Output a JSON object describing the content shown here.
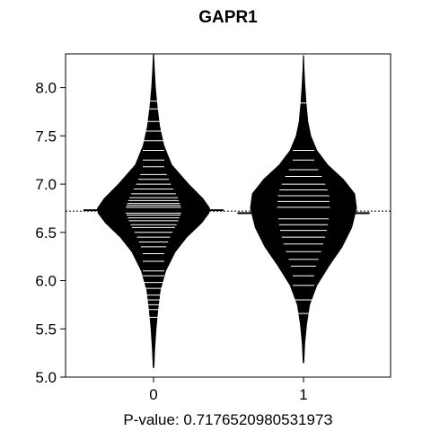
{
  "chart_data": {
    "type": "beanplot",
    "title": "GAPR1",
    "xlabel": "P-value: 0.717652098053197З",
    "ylabel": "",
    "ylim": [
      5.0,
      8.35
    ],
    "yticks": [
      "5.0",
      "5.5",
      "6.0",
      "6.5",
      "7.0",
      "7.5",
      "8.0"
    ],
    "categories": [
      "0",
      "1"
    ],
    "overall_line": 6.72,
    "grid": false,
    "groups": [
      {
        "label": "0",
        "mean": 6.73,
        "range": [
          5.1,
          8.35
        ],
        "density": [
          [
            5.1,
            0.005
          ],
          [
            5.3,
            0.02
          ],
          [
            5.5,
            0.04
          ],
          [
            5.7,
            0.07
          ],
          [
            5.9,
            0.11
          ],
          [
            6.1,
            0.2
          ],
          [
            6.3,
            0.36
          ],
          [
            6.45,
            0.55
          ],
          [
            6.6,
            0.8
          ],
          [
            6.7,
            0.92
          ],
          [
            6.75,
            0.93
          ],
          [
            6.85,
            0.82
          ],
          [
            7.0,
            0.58
          ],
          [
            7.2,
            0.3
          ],
          [
            7.4,
            0.17
          ],
          [
            7.6,
            0.1
          ],
          [
            7.8,
            0.06
          ],
          [
            8.0,
            0.03
          ],
          [
            8.2,
            0.012
          ],
          [
            8.35,
            0.002
          ]
        ],
        "points": [
          5.62,
          5.7,
          5.75,
          5.8,
          5.85,
          5.92,
          5.98,
          6.05,
          6.1,
          6.2,
          6.28,
          6.35,
          6.4,
          6.45,
          6.5,
          6.55,
          6.58,
          6.62,
          6.65,
          6.68,
          6.7,
          6.73,
          6.76,
          6.78,
          6.8,
          6.83,
          6.86,
          6.9,
          6.95,
          7.0,
          7.05,
          7.1,
          7.18,
          7.25,
          7.35,
          7.45,
          7.55,
          7.65,
          7.78,
          7.86
        ]
      },
      {
        "label": "1",
        "mean": 6.7,
        "range": [
          5.15,
          8.33
        ],
        "density": [
          [
            5.15,
            0.005
          ],
          [
            5.35,
            0.02
          ],
          [
            5.55,
            0.05
          ],
          [
            5.75,
            0.1
          ],
          [
            5.95,
            0.22
          ],
          [
            6.15,
            0.42
          ],
          [
            6.35,
            0.64
          ],
          [
            6.55,
            0.8
          ],
          [
            6.75,
            0.88
          ],
          [
            6.9,
            0.85
          ],
          [
            7.05,
            0.66
          ],
          [
            7.2,
            0.4
          ],
          [
            7.35,
            0.22
          ],
          [
            7.5,
            0.12
          ],
          [
            7.65,
            0.07
          ],
          [
            7.85,
            0.04
          ],
          [
            8.05,
            0.02
          ],
          [
            8.2,
            0.008
          ],
          [
            8.33,
            0.002
          ]
        ],
        "points": [
          5.66,
          5.8,
          5.95,
          6.05,
          6.15,
          6.22,
          6.3,
          6.38,
          6.45,
          6.52,
          6.58,
          6.64,
          6.7,
          6.76,
          6.82,
          6.88,
          6.94,
          7.0,
          7.08,
          7.15,
          7.25,
          7.35,
          7.84
        ]
      }
    ]
  }
}
